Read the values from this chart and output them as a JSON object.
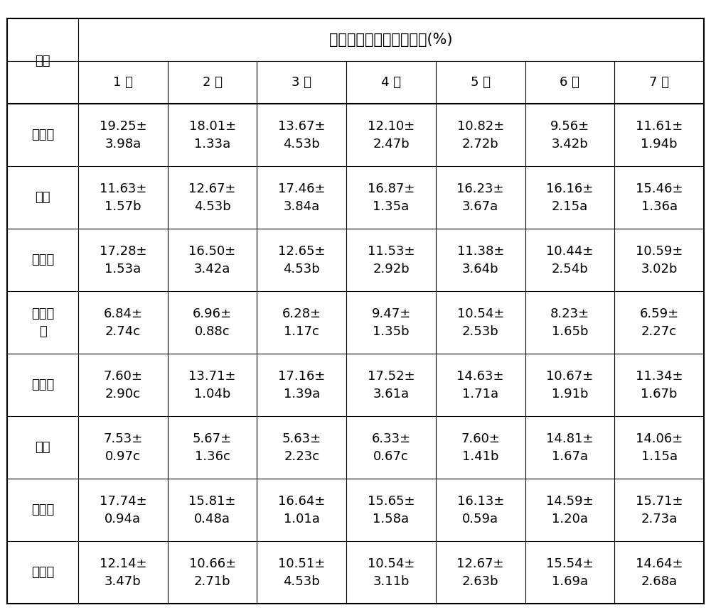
{
  "title": "不同虫龄取食选择百分率(%)",
  "col_headers": [
    "1 龄",
    "2 龄",
    "3 龄",
    "4 龄",
    "5 龄",
    "6 龄",
    "7 龄"
  ],
  "row_labels": [
    "珠芽蓼",
    "丹参",
    "圆穗蓼",
    "羊角天\n麻",
    "草石蚕",
    "菊芋",
    "小大黄",
    "胡萝卜"
  ],
  "cell_data": [
    [
      "19.25±\n3.98a",
      "18.01±\n1.33a",
      "13.67±\n4.53b",
      "12.10±\n2.47b",
      "10.82±\n2.72b",
      "9.56±\n3.42b",
      "11.61±\n1.94b"
    ],
    [
      "11.63±\n1.57b",
      "12.67±\n4.53b",
      "17.46±\n3.84a",
      "16.87±\n1.35a",
      "16.23±\n3.67a",
      "16.16±\n2.15a",
      "15.46±\n1.36a"
    ],
    [
      "17.28±\n1.53a",
      "16.50±\n3.42a",
      "12.65±\n4.53b",
      "11.53±\n2.92b",
      "11.38±\n3.64b",
      "10.44±\n2.54b",
      "10.59±\n3.02b"
    ],
    [
      "6.84±\n2.74c",
      "6.96±\n0.88c",
      "6.28±\n1.17c",
      "9.47±\n1.35b",
      "10.54±\n2.53b",
      "8.23±\n1.65b",
      "6.59±\n2.27c"
    ],
    [
      "7.60±\n2.90c",
      "13.71±\n1.04b",
      "17.16±\n1.39a",
      "17.52±\n3.61a",
      "14.63±\n1.71a",
      "10.67±\n1.91b",
      "11.34±\n1.67b"
    ],
    [
      "7.53±\n0.97c",
      "5.67±\n1.36c",
      "5.63±\n2.23c",
      "6.33±\n0.67c",
      "7.60±\n1.41b",
      "14.81±\n1.67a",
      "14.06±\n1.15a"
    ],
    [
      "17.74±\n0.94a",
      "15.81±\n0.48a",
      "16.64±\n1.01a",
      "15.65±\n1.58a",
      "16.13±\n0.59a",
      "14.59±\n1.20a",
      "15.71±\n2.73a"
    ],
    [
      "12.14±\n3.47b",
      "10.66±\n2.71b",
      "10.51±\n4.53b",
      "10.54±\n3.11b",
      "12.67±\n2.63b",
      "15.54±\n1.69a",
      "14.64±\n2.68a"
    ]
  ],
  "bg_color": "#ffffff",
  "text_color": "#000000",
  "line_color": "#000000",
  "font_size": 13,
  "title_font_size": 15
}
